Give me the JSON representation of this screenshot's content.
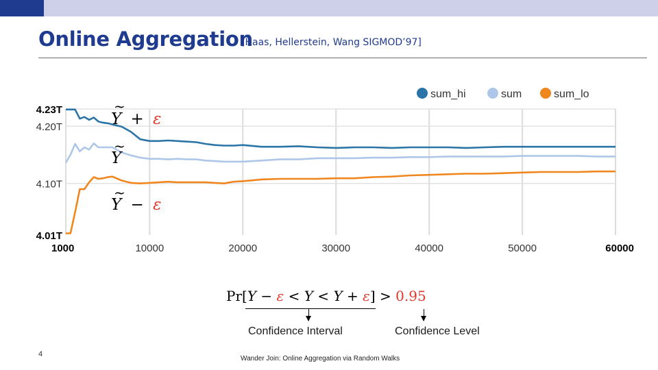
{
  "slide": {
    "title": "Online Aggregation",
    "citation": "[Haas, Hellerstein, Wang SIGMOD’97]",
    "slide_number": "4",
    "footer": "Wander Join: Online Aggregation via Random Walks"
  },
  "annotations": {
    "upper": {
      "symbol": "Y",
      "op": "+",
      "eps": "ε"
    },
    "mid": {
      "symbol": "Y"
    },
    "lower": {
      "symbol": "Y",
      "op": "−",
      "eps": "ε"
    }
  },
  "formula": {
    "pr": "Pr",
    "lbracket": "[",
    "y1": "Y",
    "minus": " − ",
    "eps1": "ε",
    "lt1": " < ",
    "yvar": "Y",
    "lt2": " < ",
    "y2": "Y",
    "plus": " + ",
    "eps2": "ε",
    "rbracket": "]",
    "gt": " > ",
    "level": "0.95"
  },
  "labels": {
    "confidence_interval": "Confidence Interval",
    "confidence_level": "Confidence Level"
  },
  "colors": {
    "sum_hi": "#2a74a8",
    "sum": "#aec7e8",
    "sum_lo": "#f0861e",
    "title_blue": "#1f3b8f",
    "red": "#e0392b"
  },
  "chart_data": {
    "type": "line",
    "title": "",
    "xlabel": "",
    "ylabel": "",
    "xlim": [
      1000,
      60000
    ],
    "ylim": [
      4.01,
      4.23
    ],
    "y_ticks": [
      {
        "value": 4.23,
        "label": "4.23T",
        "bold": true
      },
      {
        "value": 4.2,
        "label": "4.20T",
        "bold": false
      },
      {
        "value": 4.1,
        "label": "4.10T",
        "bold": false
      },
      {
        "value": 4.01,
        "label": "4.01T",
        "bold": true
      }
    ],
    "x_ticks": [
      {
        "value": 1000,
        "label": "1000",
        "bold": true
      },
      {
        "value": 10000,
        "label": "10000",
        "bold": false
      },
      {
        "value": 20000,
        "label": "20000",
        "bold": false
      },
      {
        "value": 30000,
        "label": "30000",
        "bold": false
      },
      {
        "value": 40000,
        "label": "40000",
        "bold": false
      },
      {
        "value": 50000,
        "label": "50000",
        "bold": false
      },
      {
        "value": 60000,
        "label": "60000",
        "bold": true
      }
    ],
    "x_gridlines": [
      1000,
      10000,
      20000,
      30000,
      40000,
      50000,
      60000
    ],
    "y_gridlines": [
      4.23,
      4.2,
      4.1
    ],
    "legend_position": "top-right",
    "series": [
      {
        "name": "sum_hi",
        "x": [
          1000,
          1500,
          2000,
          2500,
          3000,
          3500,
          4000,
          4500,
          5000,
          5500,
          6000,
          7000,
          8000,
          9000,
          10000,
          11000,
          12000,
          13000,
          14000,
          15000,
          16000,
          17000,
          18000,
          19000,
          20000,
          22000,
          24000,
          26000,
          28000,
          30000,
          32000,
          34000,
          36000,
          38000,
          40000,
          42000,
          44000,
          46000,
          48000,
          50000,
          52000,
          54000,
          56000,
          58000,
          60000
        ],
        "y": [
          4.229,
          4.229,
          4.229,
          4.213,
          4.216,
          4.211,
          4.215,
          4.208,
          4.206,
          4.205,
          4.203,
          4.199,
          4.19,
          4.177,
          4.174,
          4.174,
          4.175,
          4.174,
          4.173,
          4.172,
          4.169,
          4.167,
          4.166,
          4.166,
          4.167,
          4.164,
          4.164,
          4.165,
          4.163,
          4.162,
          4.163,
          4.163,
          4.162,
          4.163,
          4.163,
          4.163,
          4.162,
          4.163,
          4.164,
          4.164,
          4.164,
          4.164,
          4.164,
          4.164,
          4.164
        ]
      },
      {
        "name": "sum",
        "x": [
          1000,
          1500,
          2000,
          2500,
          3000,
          3500,
          4000,
          4500,
          5000,
          5500,
          6000,
          7000,
          8000,
          9000,
          10000,
          11000,
          12000,
          13000,
          14000,
          15000,
          16000,
          17000,
          18000,
          19000,
          20000,
          22000,
          24000,
          26000,
          28000,
          30000,
          32000,
          34000,
          36000,
          38000,
          40000,
          42000,
          44000,
          46000,
          48000,
          50000,
          52000,
          54000,
          56000,
          58000,
          60000
        ],
        "y": [
          4.136,
          4.15,
          4.169,
          4.156,
          4.163,
          4.159,
          4.17,
          4.163,
          4.163,
          4.163,
          4.163,
          4.154,
          4.149,
          4.145,
          4.143,
          4.143,
          4.142,
          4.143,
          4.142,
          4.142,
          4.14,
          4.139,
          4.138,
          4.138,
          4.138,
          4.14,
          4.142,
          4.142,
          4.144,
          4.144,
          4.144,
          4.145,
          4.145,
          4.146,
          4.146,
          4.147,
          4.147,
          4.147,
          4.147,
          4.148,
          4.148,
          4.148,
          4.148,
          4.147,
          4.147
        ]
      },
      {
        "name": "sum_lo",
        "x": [
          1000,
          1500,
          2000,
          2500,
          3000,
          3500,
          4000,
          4500,
          5000,
          5500,
          6000,
          7000,
          8000,
          9000,
          10000,
          11000,
          12000,
          13000,
          14000,
          15000,
          16000,
          17000,
          18000,
          19000,
          20000,
          22000,
          24000,
          26000,
          28000,
          30000,
          32000,
          34000,
          36000,
          38000,
          40000,
          42000,
          44000,
          46000,
          48000,
          50000,
          52000,
          54000,
          56000,
          58000,
          60000
        ],
        "y": [
          4.013,
          4.013,
          4.05,
          4.09,
          4.09,
          4.102,
          4.111,
          4.108,
          4.109,
          4.111,
          4.112,
          4.105,
          4.101,
          4.1,
          4.101,
          4.102,
          4.103,
          4.102,
          4.102,
          4.102,
          4.102,
          4.101,
          4.1,
          4.103,
          4.104,
          4.107,
          4.108,
          4.108,
          4.108,
          4.109,
          4.109,
          4.111,
          4.112,
          4.114,
          4.115,
          4.116,
          4.117,
          4.117,
          4.118,
          4.119,
          4.12,
          4.12,
          4.12,
          4.121,
          4.121
        ]
      }
    ]
  }
}
